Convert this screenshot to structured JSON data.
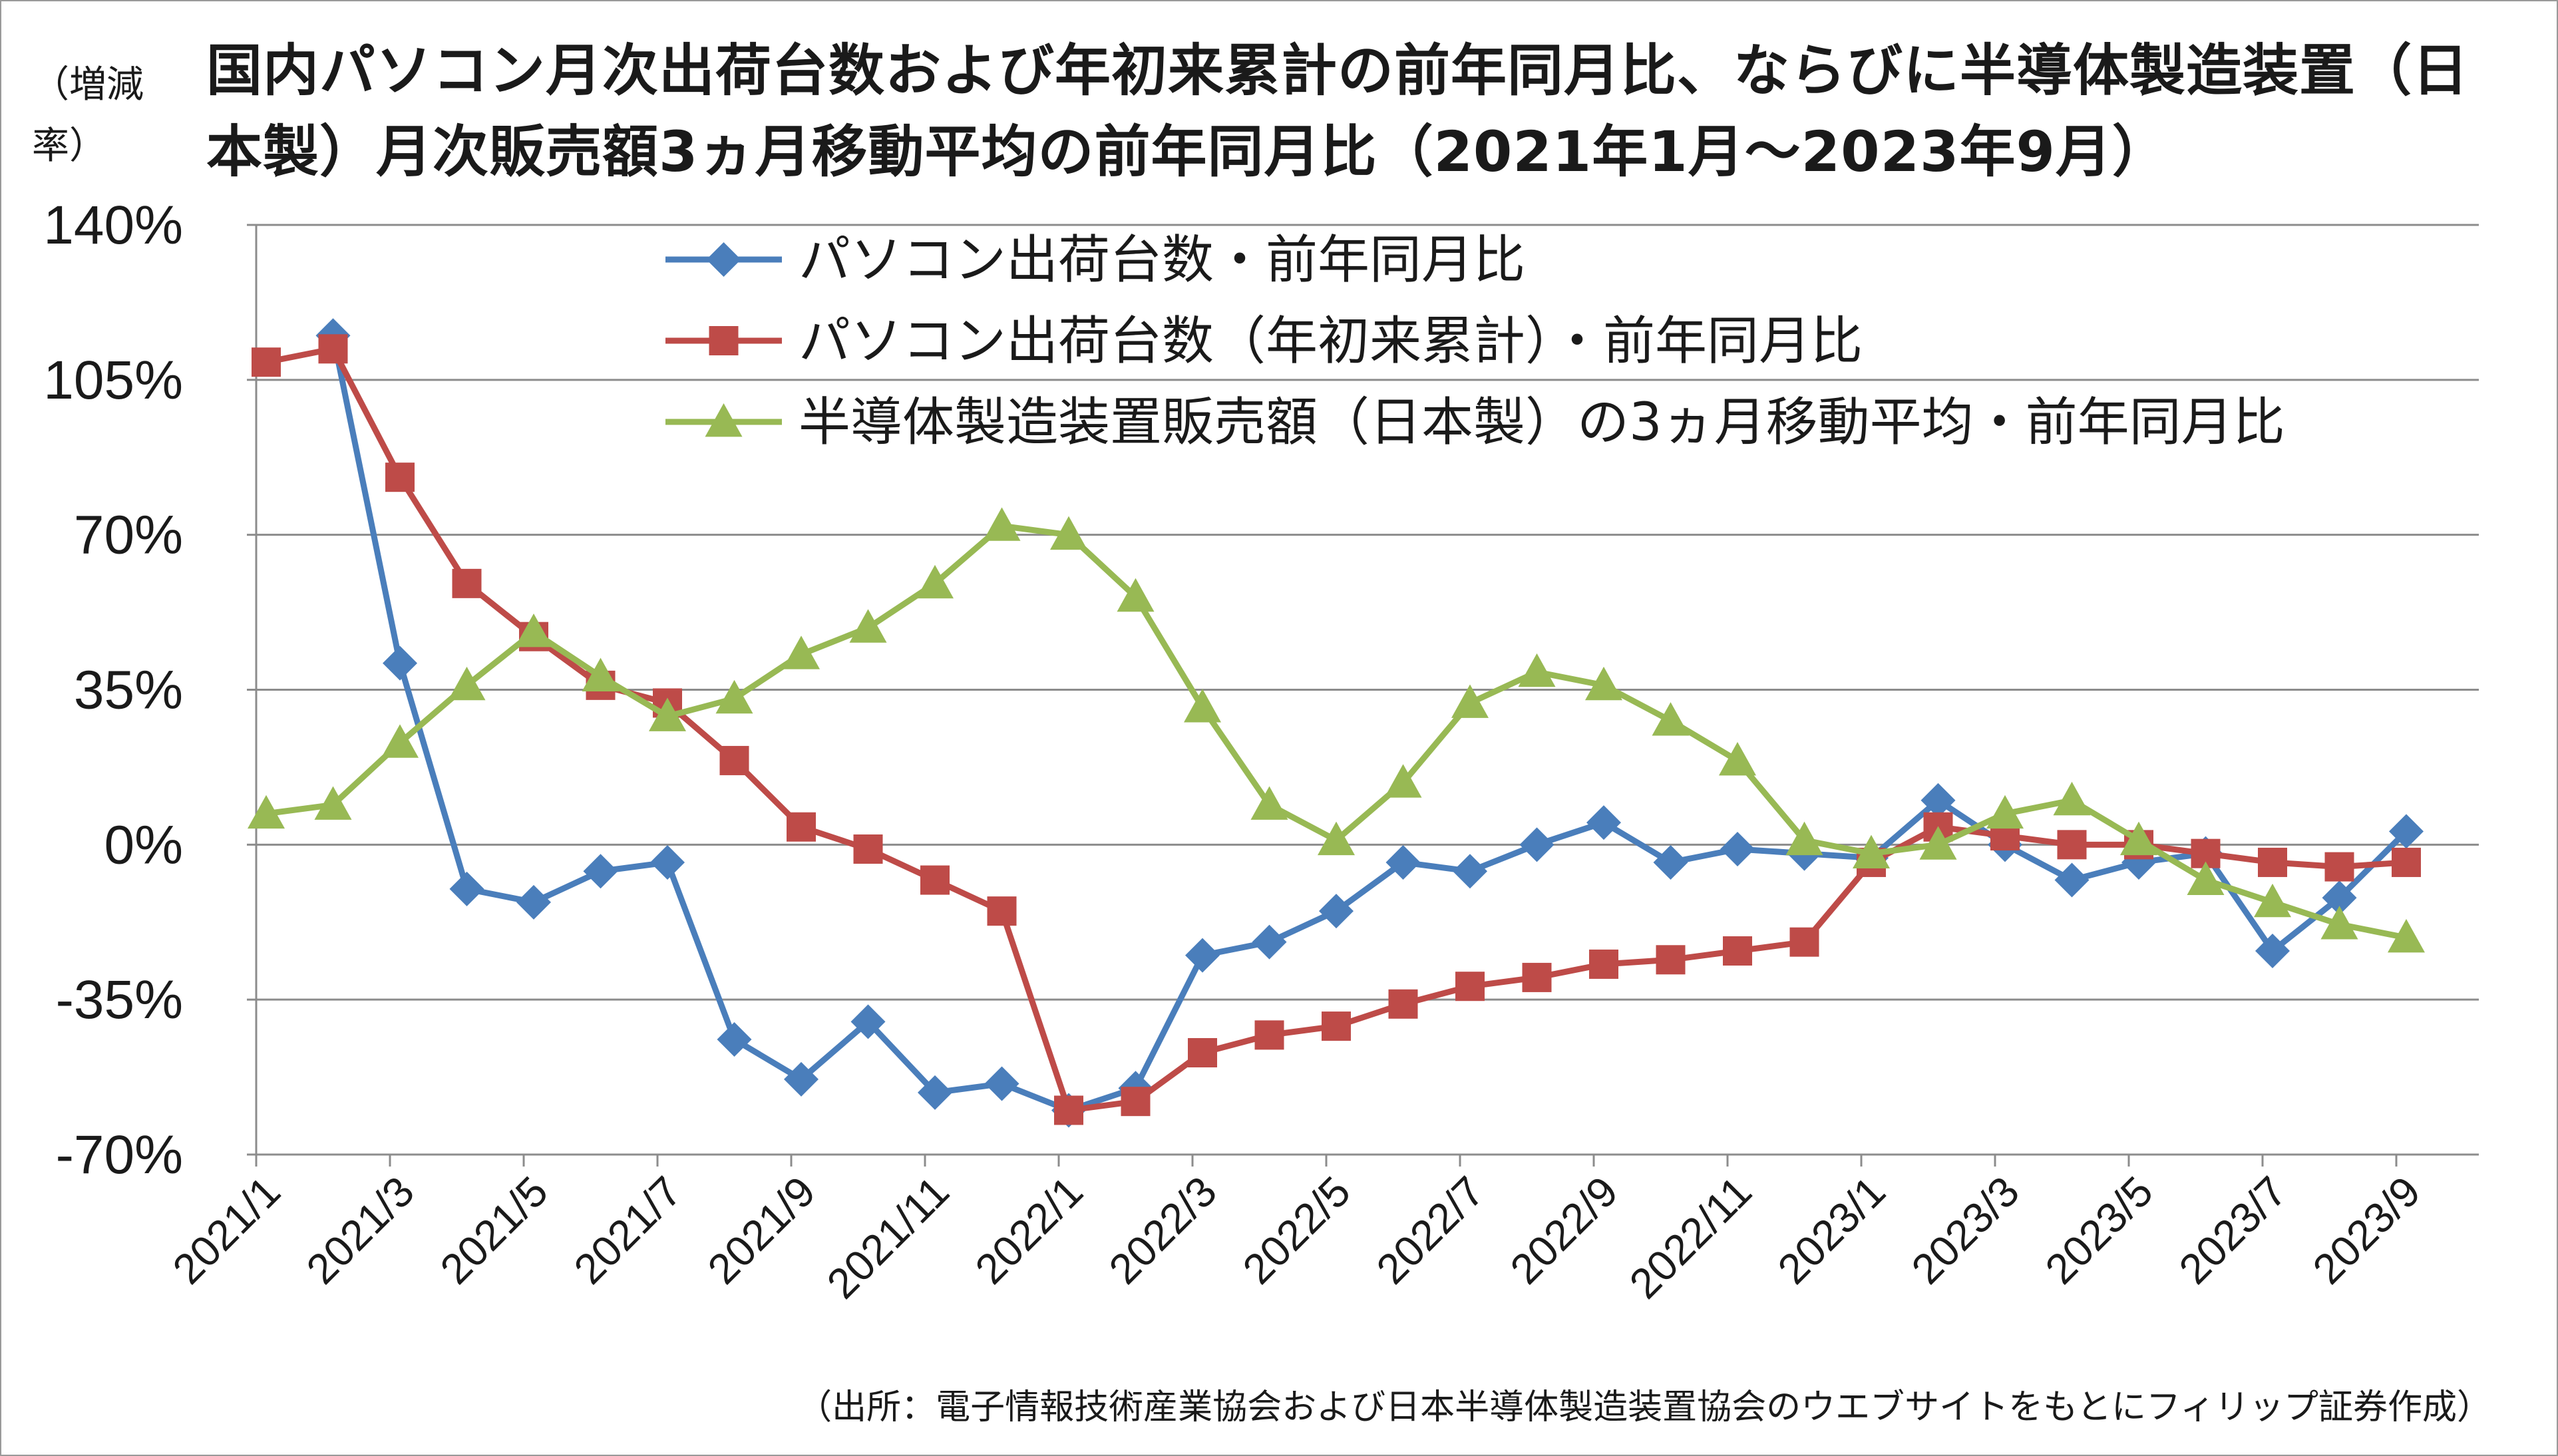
{
  "title": "国内パソコン月次出荷台数および年初来累計の前年同月比、ならびに半導体製造装置（日本製）月次販売額3ヵ月移動平均の前年同月比（2021年1月～2023年9月）",
  "y_unit_label": "（増減率）",
  "source": "（出所：電子情報技術産業協会および日本半導体製造装置協会のウエブサイトをもとにフィリップ証券作成）",
  "chart_data": {
    "type": "line",
    "ylim": [
      -70,
      140
    ],
    "y_ticks": [
      "140%",
      "105%",
      "70%",
      "35%",
      "0%",
      "-35%",
      "-70%"
    ],
    "y_tick_values": [
      140,
      105,
      70,
      35,
      0,
      -35,
      -70
    ],
    "grid": "horizontal",
    "legend_position": "top-center",
    "x_tick_labels": [
      "2021/1",
      "2021/3",
      "2021/5",
      "2021/7",
      "2021/9",
      "2021/11",
      "2022/1",
      "2022/3",
      "2022/5",
      "2022/7",
      "2022/9",
      "2022/11",
      "2023/1",
      "2023/3",
      "2023/5",
      "2023/7",
      "2023/9"
    ],
    "categories": [
      "2021/1",
      "2021/2",
      "2021/3",
      "2021/4",
      "2021/5",
      "2021/6",
      "2021/7",
      "2021/8",
      "2021/9",
      "2021/10",
      "2021/11",
      "2021/12",
      "2022/1",
      "2022/2",
      "2022/3",
      "2022/4",
      "2022/5",
      "2022/6",
      "2022/7",
      "2022/8",
      "2022/9",
      "2022/10",
      "2022/11",
      "2022/12",
      "2023/1",
      "2023/2",
      "2023/3",
      "2023/4",
      "2023/5",
      "2023/6",
      "2023/7",
      "2023/8",
      "2023/9"
    ],
    "series": [
      {
        "name": "パソコン出荷台数・前年同月比",
        "color": "#4a7ebb",
        "marker": "diamond",
        "values": [
          null,
          115,
          41,
          -10,
          -13,
          -6,
          -4,
          -44,
          -53,
          -40,
          -56,
          -54,
          -60,
          -55,
          -25,
          -22,
          -15,
          -4,
          -6,
          0,
          5,
          -4,
          -1,
          -2,
          -3,
          10,
          0,
          -8,
          -4,
          -2,
          -24,
          -12,
          3
        ]
      },
      {
        "name": "パソコン出荷台数（年初来累計）・前年同月比",
        "color": "#be4b48",
        "marker": "square",
        "values": [
          109,
          112,
          83,
          59,
          47,
          36,
          32,
          19,
          4,
          -1,
          -8,
          -15,
          -60,
          -58,
          -47,
          -43,
          -41,
          -36,
          -32,
          -30,
          -27,
          -26,
          -24,
          -22,
          -4,
          4,
          2,
          0,
          0,
          -2,
          -4,
          -5,
          -4
        ]
      },
      {
        "name": "半導体製造装置販売額（日本製）の3ヵ月移動平均・前年同月比",
        "color": "#98b954",
        "marker": "triangle",
        "values": [
          7,
          9,
          23,
          36,
          48,
          38,
          29,
          33,
          43,
          49,
          59,
          72,
          70,
          56,
          31,
          9,
          1,
          14,
          32,
          39,
          36,
          28,
          19,
          1,
          -2,
          0,
          7,
          10,
          1,
          -8,
          -13,
          -18,
          -21
        ]
      }
    ]
  }
}
